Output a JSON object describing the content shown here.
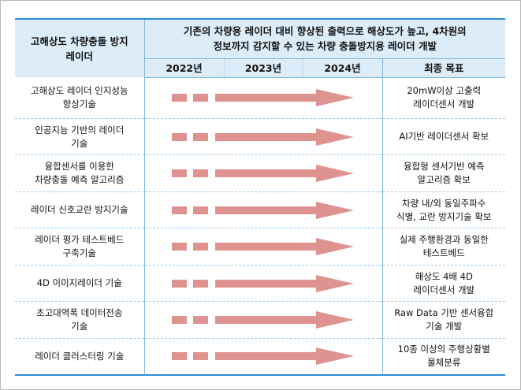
{
  "header": {
    "left_title": "고해상도 차량충돌 방지 레이더",
    "goal_line1": "기존의 차량용 레이더 대비 향상된 출력으로 해상도가 높고, 4차원의",
    "goal_line2": "정보까지 감지할 수 있는 차량 충돌방지용 레이더 개발",
    "years": [
      "2022년",
      "2023년",
      "2024년"
    ],
    "final_goal": "최종 목표"
  },
  "rows": [
    {
      "tech": [
        "고해상도 레이더 인지성능",
        "향상기술"
      ],
      "goal": [
        "20mW이상 고출력",
        "레이더센서 개발"
      ]
    },
    {
      "tech": [
        "인공지능 기반의 레이더",
        "기술"
      ],
      "goal": [
        "AI기반 레이더센서 확보"
      ]
    },
    {
      "tech": [
        "융합센서를 이용한",
        "차량충돌 예측 알고리즘"
      ],
      "goal": [
        "융합형 센서기반 예측",
        "알고리즘 확보"
      ]
    },
    {
      "tech": [
        "레이더 신호교란 방지기술"
      ],
      "goal": [
        "차량 내/외 동일주파수",
        "식별, 교란 방지기술 확보"
      ]
    },
    {
      "tech": [
        "레이더 평가 테스트베드",
        "구축기술"
      ],
      "goal": [
        "실제 주행환경과 동일한",
        "테스트베드"
      ]
    },
    {
      "tech": [
        "4D 이미지레이더 기술"
      ],
      "goal": [
        "해상도 4배 4D",
        "레이더센서 개발"
      ]
    },
    {
      "tech": [
        "초고대역폭 데이터전송",
        "기술"
      ],
      "goal": [
        "Raw Data 기반 센서융합",
        "기술 개발"
      ]
    },
    {
      "tech": [
        "레이더 클러스터링 기술"
      ],
      "goal": [
        "10종 이상의 주행상황별",
        "물체분류"
      ]
    }
  ],
  "colors": {
    "arrow": "#de9391",
    "header_bg": "#dcecf8",
    "rule": "#2e8fd6"
  }
}
